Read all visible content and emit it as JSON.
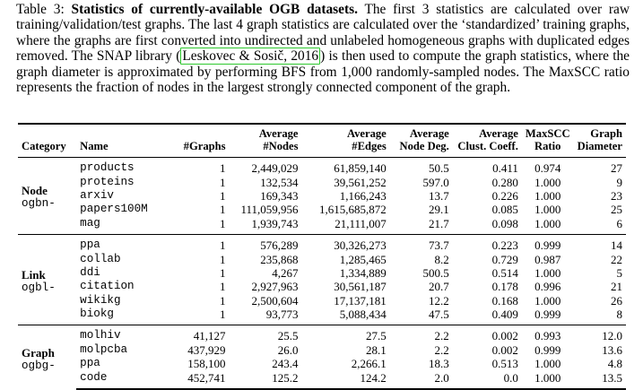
{
  "caption": {
    "label": "Table 3:",
    "title": "Statistics of currently-available OGB datasets.",
    "text_before_cite": "The first 3 statistics are calculated over raw training/validation/test graphs. The last 4 graph statistics are calculated over the ‘standardized’ training graphs, where the graphs are first converted into undirected and unlabeled homogeneous graphs with duplicated edges removed. The SNAP library (",
    "cite": "Leskovec & Sosič, 2016",
    "text_after_cite": ") is then used to compute the graph statistics, where the graph diameter is approximated by performing BFS from 1,000 randomly-sampled nodes. The MaxSCC ratio represents the fraction of nodes in the largest strongly connected component of the graph."
  },
  "headers": {
    "category": "Category",
    "name": "Name",
    "graphs": "#Graphs",
    "nodes_1": "Average",
    "nodes_2": "#Nodes",
    "edges_1": "Average",
    "edges_2": "#Edges",
    "deg_1": "Average",
    "deg_2": "Node Deg.",
    "clust_1": "Average",
    "clust_2": "Clust. Coeff.",
    "scc_1": "MaxSCC",
    "scc_2": "Ratio",
    "diam_1": "Graph",
    "diam_2": "Diameter"
  },
  "groups": [
    {
      "category": "Node",
      "prefix": "ogbn-",
      "rows": [
        {
          "name": "products",
          "graphs": "1",
          "nodes": "2,449,029",
          "edges": "61,859,140",
          "deg": "50.5",
          "clust": "0.411",
          "scc": "0.974",
          "diam": "27"
        },
        {
          "name": "proteins",
          "graphs": "1",
          "nodes": "132,534",
          "edges": "39,561,252",
          "deg": "597.0",
          "clust": "0.280",
          "scc": "1.000",
          "diam": "9"
        },
        {
          "name": "arxiv",
          "graphs": "1",
          "nodes": "169,343",
          "edges": "1,166,243",
          "deg": "13.7",
          "clust": "0.226",
          "scc": "1.000",
          "diam": "23"
        },
        {
          "name": "papers100M",
          "graphs": "1",
          "nodes": "111,059,956",
          "edges": "1,615,685,872",
          "deg": "29.1",
          "clust": "0.085",
          "scc": "1.000",
          "diam": "25"
        },
        {
          "name": "mag",
          "graphs": "1",
          "nodes": "1,939,743",
          "edges": "21,111,007",
          "deg": "21.7",
          "clust": "0.098",
          "scc": "1.000",
          "diam": "6"
        }
      ]
    },
    {
      "category": "Link",
      "prefix": "ogbl-",
      "rows": [
        {
          "name": "ppa",
          "graphs": "1",
          "nodes": "576,289",
          "edges": "30,326,273",
          "deg": "73.7",
          "clust": "0.223",
          "scc": "0.999",
          "diam": "14"
        },
        {
          "name": "collab",
          "graphs": "1",
          "nodes": "235,868",
          "edges": "1,285,465",
          "deg": "8.2",
          "clust": "0.729",
          "scc": "0.987",
          "diam": "22"
        },
        {
          "name": "ddi",
          "graphs": "1",
          "nodes": "4,267",
          "edges": "1,334,889",
          "deg": "500.5",
          "clust": "0.514",
          "scc": "1.000",
          "diam": "5"
        },
        {
          "name": "citation",
          "graphs": "1",
          "nodes": "2,927,963",
          "edges": "30,561,187",
          "deg": "20.7",
          "clust": "0.178",
          "scc": "0.996",
          "diam": "21"
        },
        {
          "name": "wikikg",
          "graphs": "1",
          "nodes": "2,500,604",
          "edges": "17,137,181",
          "deg": "12.2",
          "clust": "0.168",
          "scc": "1.000",
          "diam": "26"
        },
        {
          "name": "biokg",
          "graphs": "1",
          "nodes": "93,773",
          "edges": "5,088,434",
          "deg": "47.5",
          "clust": "0.409",
          "scc": "0.999",
          "diam": "8"
        }
      ]
    },
    {
      "category": "Graph",
      "prefix": "ogbg-",
      "rows": [
        {
          "name": "molhiv",
          "graphs": "41,127",
          "nodes": "25.5",
          "edges": "27.5",
          "deg": "2.2",
          "clust": "0.002",
          "scc": "0.993",
          "diam": "12.0"
        },
        {
          "name": "molpcba",
          "graphs": "437,929",
          "nodes": "26.0",
          "edges": "28.1",
          "deg": "2.2",
          "clust": "0.002",
          "scc": "0.999",
          "diam": "13.6"
        },
        {
          "name": "ppa",
          "graphs": "158,100",
          "nodes": "243.4",
          "edges": "2,266.1",
          "deg": "18.3",
          "clust": "0.513",
          "scc": "1.000",
          "diam": "4.8"
        },
        {
          "name": "code",
          "graphs": "452,741",
          "nodes": "125.2",
          "edges": "124.2",
          "deg": "2.0",
          "clust": "0.0",
          "scc": "1.000",
          "diam": "13.5"
        }
      ]
    }
  ]
}
